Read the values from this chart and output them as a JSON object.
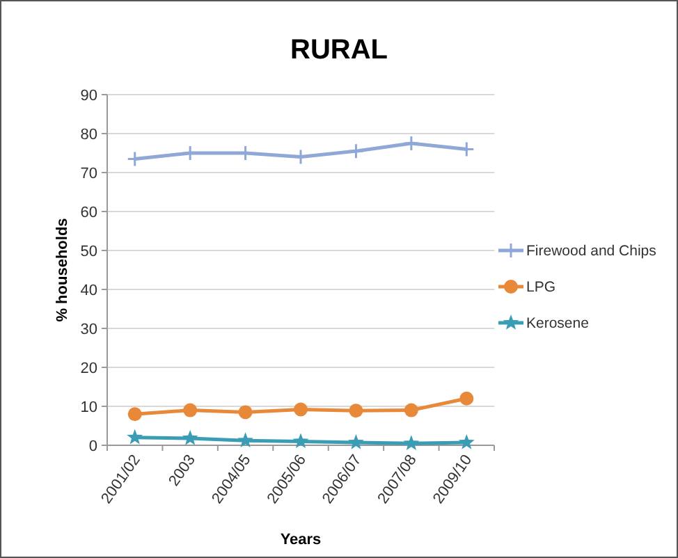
{
  "chart_data": {
    "type": "line",
    "title": "RURAL",
    "xlabel": "Years",
    "ylabel": "% households",
    "categories": [
      "2001/02",
      "2003",
      "2004/05",
      "2005/06",
      "2006/07",
      "2007/08",
      "2009/10"
    ],
    "series": [
      {
        "name": "Firewood and Chips",
        "color": "#8fa8d6",
        "marker": "cross",
        "values": [
          73.5,
          75,
          75,
          74,
          75.5,
          77.5,
          76
        ]
      },
      {
        "name": "LPG",
        "color": "#e8893a",
        "marker": "circle",
        "values": [
          8,
          9,
          8.5,
          9.2,
          8.9,
          9,
          12
        ]
      },
      {
        "name": "Kerosene",
        "color": "#3a9db5",
        "marker": "star",
        "values": [
          2,
          1.8,
          1.2,
          1,
          0.7,
          0.5,
          0.7
        ]
      }
    ],
    "ylim": [
      0,
      90
    ],
    "yticks": [
      0,
      10,
      20,
      30,
      40,
      50,
      60,
      70,
      80,
      90
    ],
    "grid": "y",
    "legend": "right"
  }
}
